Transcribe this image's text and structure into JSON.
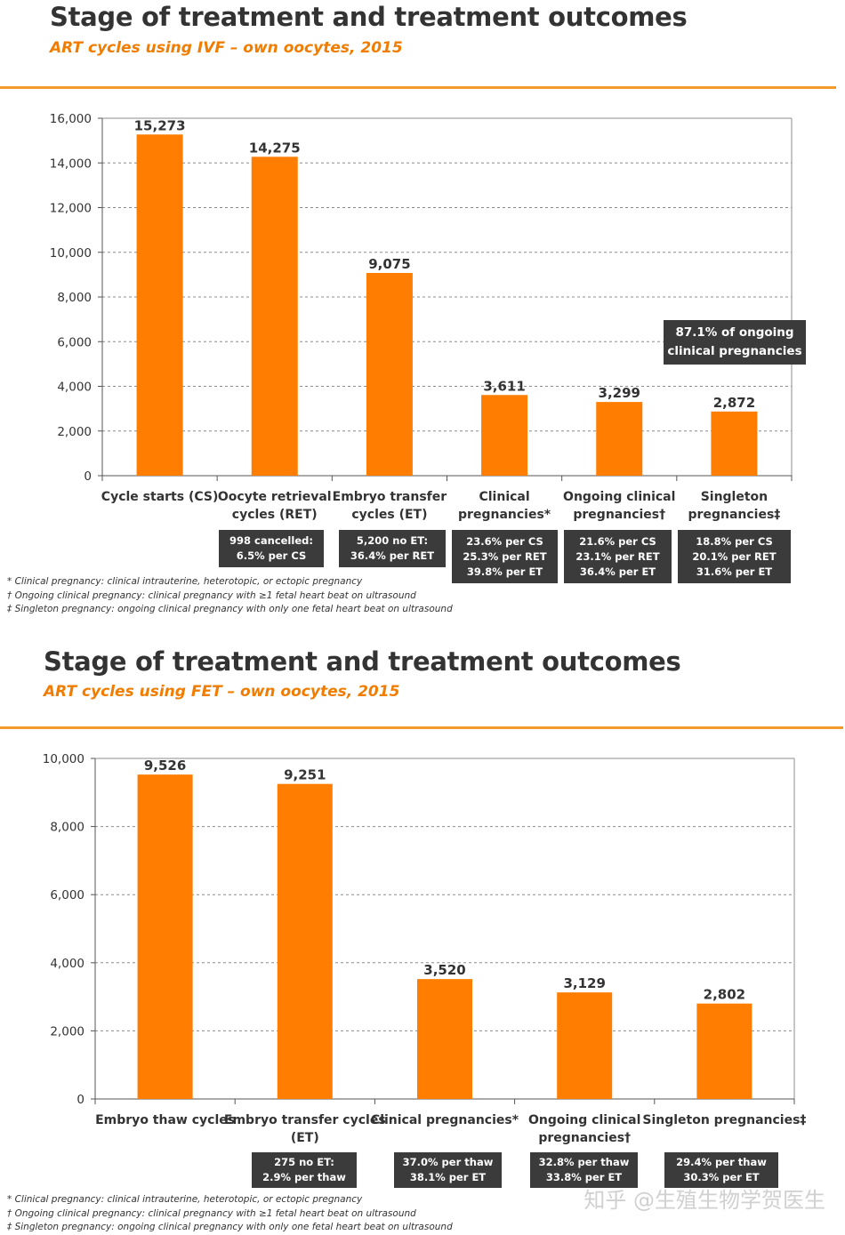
{
  "colors": {
    "bar": "#ff7d00",
    "accent": "#f07c00",
    "box": "#3b3b3b"
  },
  "charts": [
    {
      "title": "Stage of treatment and treatment outcomes",
      "subtitle": "ART cycles using IVF – own oocytes, 2015",
      "stats": [
        [
          "998 cancelled:",
          "6.5% per CS"
        ],
        [
          "5,200  no ET:",
          "36.4% per RET"
        ],
        [
          "23.6% per CS",
          "25.3% per RET",
          "39.8% per ET"
        ],
        [
          "21.6% per CS",
          "23.1% per RET",
          "36.4% per ET"
        ],
        [
          "18.8% per CS",
          "20.1% per RET",
          "31.6% per ET"
        ]
      ],
      "note": [
        "87.1% of ongoing",
        "clinical pregnancies"
      ],
      "footnotes": [
        "* Clinical pregnancy: clinical intrauterine, heterotopic, or ectopic pregnancy",
        "† Ongoing clinical pregnancy: clinical pregnancy with ≥1 fetal heart beat on ultrasound",
        "‡ Singleton pregnancy: ongoing clinical pregnancy with only one fetal heart beat on ultrasound"
      ]
    },
    {
      "title": "Stage of treatment and treatment outcomes",
      "subtitle": "ART cycles using FET – own oocytes, 2015",
      "stats": [
        [
          "275 no ET:",
          "2.9% per thaw"
        ],
        [
          "37.0% per thaw",
          "38.1% per ET"
        ],
        [
          "32.8% per thaw",
          "33.8% per ET"
        ],
        [
          "29.4% per thaw",
          "30.3% per ET"
        ]
      ],
      "footnotes": [
        "* Clinical pregnancy: clinical intrauterine, heterotopic, or ectopic pregnancy",
        "† Ongoing clinical pregnancy: clinical pregnancy with ≥1 fetal heart beat on ultrasound",
        "‡ Singleton pregnancy: ongoing clinical pregnancy with only one fetal heart beat on ultrasound"
      ]
    }
  ],
  "chart_data": [
    {
      "type": "bar",
      "title": "Stage of treatment and treatment outcomes",
      "subtitle": "ART cycles using IVF – own oocytes, 2015",
      "categories": [
        [
          "Cycle starts (CS)"
        ],
        [
          "Oocyte retrieval",
          "cycles (RET)"
        ],
        [
          "Embryo transfer",
          "cycles (ET)"
        ],
        [
          "Clinical",
          "pregnancies*"
        ],
        [
          "Ongoing clinical",
          "pregnancies†"
        ],
        [
          "Singleton",
          "pregnancies‡"
        ]
      ],
      "values": [
        15273,
        14275,
        9075,
        3611,
        3299,
        2872
      ],
      "value_labels": [
        "15,273",
        "14,275",
        "9,075",
        "3,611",
        "3,299",
        "2,872"
      ],
      "yticks": [
        "0",
        "2,000",
        "4,000",
        "6,000",
        "8,000",
        "10,000",
        "12,000",
        "14,000",
        "16,000"
      ],
      "ylim": [
        0,
        16000
      ],
      "grid": true
    },
    {
      "type": "bar",
      "title": "Stage of treatment and treatment outcomes",
      "subtitle": "ART cycles using FET – own oocytes, 2015",
      "categories": [
        [
          "Embryo thaw cycles"
        ],
        [
          "Embryo transfer cycles",
          "(ET)"
        ],
        [
          "Clinical pregnancies*"
        ],
        [
          "Ongoing clinical",
          "pregnancies†"
        ],
        [
          "Singleton pregnancies‡"
        ]
      ],
      "values": [
        9526,
        9251,
        3520,
        3129,
        2802
      ],
      "value_labels": [
        "9,526",
        "9,251",
        "3,520",
        "3,129",
        "2,802"
      ],
      "yticks": [
        "0",
        "2,000",
        "4,000",
        "6,000",
        "8,000",
        "10,000"
      ],
      "ylim": [
        0,
        10000
      ],
      "grid": true
    }
  ],
  "watermark": "知乎 @生殖生物学贺医生"
}
